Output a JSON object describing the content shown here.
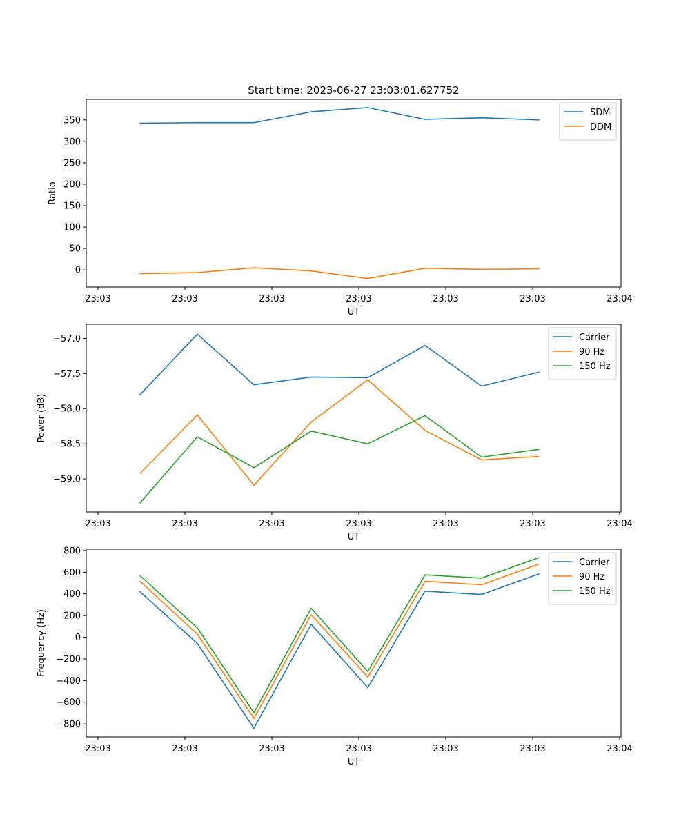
{
  "figure_title": "Start time: 2023-06-27 23:03:01.627752",
  "colors": {
    "blue": "#1f77b4",
    "orange": "#ff7f0e",
    "green": "#2ca02c"
  },
  "chart_data": [
    {
      "type": "line",
      "title": "Start time: 2023-06-27 23:03:01.627752",
      "xlabel": "UT",
      "ylabel": "Ratio",
      "x_tick_labels": [
        "23:03",
        "23:03",
        "23:03",
        "23:03",
        "23:03",
        "23:03",
        "23:03",
        "23:04"
      ],
      "y_ticks": [
        0,
        50,
        100,
        150,
        200,
        250,
        300,
        350
      ],
      "ylim": [
        -40,
        398
      ],
      "legend_position": "top-right",
      "grid": false,
      "series": [
        {
          "name": "SDM",
          "color": "#1f77b4",
          "values": [
            342.5,
            343.8,
            343.8,
            368.8,
            378.8,
            351.3,
            355.0,
            350.0
          ]
        },
        {
          "name": "DDM",
          "color": "#ff7f0e",
          "values": [
            -8.8,
            -6.3,
            5.0,
            -2.5,
            -20.0,
            3.8,
            1.3,
            2.5
          ]
        }
      ]
    },
    {
      "type": "line",
      "xlabel": "UT",
      "ylabel": "Power (dB)",
      "x_tick_labels": [
        "23:03",
        "23:03",
        "23:03",
        "23:03",
        "23:03",
        "23:03",
        "23:03",
        "23:04"
      ],
      "y_ticks": [
        -59.0,
        -58.5,
        -58.0,
        -57.5,
        -57.0
      ],
      "y_tick_labels": [
        "−59.0",
        "−58.5",
        "−58.0",
        "−57.5",
        "−57.0"
      ],
      "ylim": [
        -59.47,
        -56.8
      ],
      "legend_position": "top-right",
      "grid": false,
      "series": [
        {
          "name": "Carrier",
          "color": "#1f77b4",
          "values": [
            -57.8,
            -56.94,
            -57.66,
            -57.55,
            -57.56,
            -57.1,
            -57.68,
            -57.48
          ]
        },
        {
          "name": "90 Hz",
          "color": "#ff7f0e",
          "values": [
            -58.92,
            -58.09,
            -59.09,
            -58.19,
            -57.59,
            -58.31,
            -58.73,
            -58.68
          ]
        },
        {
          "name": "150 Hz",
          "color": "#2ca02c",
          "values": [
            -59.34,
            -58.4,
            -58.84,
            -58.32,
            -58.5,
            -58.1,
            -58.69,
            -58.58
          ]
        }
      ]
    },
    {
      "type": "line",
      "xlabel": "UT",
      "ylabel": "Frequency (Hz)",
      "x_tick_labels": [
        "23:03",
        "23:03",
        "23:03",
        "23:03",
        "23:03",
        "23:03",
        "23:03",
        "23:04"
      ],
      "y_ticks": [
        -800,
        -600,
        -400,
        -200,
        0,
        200,
        400,
        600,
        800
      ],
      "y_tick_labels": [
        "−800",
        "−600",
        "−400",
        "−200",
        "0",
        "200",
        "400",
        "600",
        "800"
      ],
      "ylim": [
        -920,
        812
      ],
      "legend_position": "top-right",
      "grid": false,
      "series": [
        {
          "name": "Carrier",
          "color": "#1f77b4",
          "values": [
            419,
            -57,
            -840,
            120,
            -465,
            425,
            394,
            584
          ]
        },
        {
          "name": "90 Hz",
          "color": "#ff7f0e",
          "values": [
            516,
            29,
            -749,
            208,
            -368,
            516,
            484,
            675
          ]
        },
        {
          "name": "150 Hz",
          "color": "#2ca02c",
          "values": [
            568,
            86,
            -697,
            267,
            -316,
            575,
            545,
            734
          ]
        }
      ]
    }
  ]
}
